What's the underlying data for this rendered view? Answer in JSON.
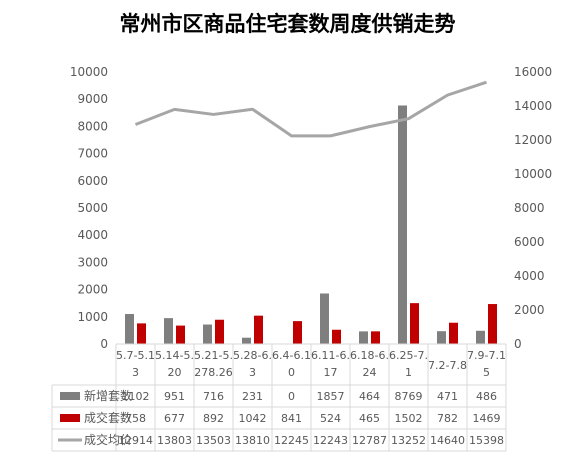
{
  "chart_data": {
    "type": "bar",
    "title": "常州市区商品住宅套数周度供销走势",
    "categories": [
      [
        "5.7-5.1",
        "3"
      ],
      [
        "5.14-5.",
        "20"
      ],
      [
        "5.21-5.",
        "278.26"
      ],
      [
        "5.28-6.",
        "3"
      ],
      [
        "6.4-6.1",
        "0"
      ],
      [
        "6.11-6.",
        "17"
      ],
      [
        "6.18-6.",
        "24"
      ],
      [
        "6.25-7.",
        "1"
      ],
      [
        "7.2-7.8",
        ""
      ],
      [
        "7.9-7.1",
        "5"
      ]
    ],
    "series": [
      {
        "name": "新增套数",
        "axis": "left",
        "kind": "bar",
        "color": "#7f7f7f",
        "values": [
          1102,
          951,
          716,
          231,
          0,
          1857,
          464,
          8769,
          471,
          486
        ]
      },
      {
        "name": "成交套数",
        "axis": "left",
        "kind": "bar",
        "color": "#c00000",
        "values": [
          758,
          677,
          892,
          1042,
          841,
          524,
          465,
          1502,
          782,
          1469
        ]
      },
      {
        "name": "成交均价",
        "axis": "right",
        "kind": "line",
        "color": "#a6a6a6",
        "values": [
          12914,
          13803,
          13503,
          13810,
          12245,
          12243,
          12787,
          13252,
          14640,
          15398
        ]
      }
    ],
    "y_left": {
      "min": 0,
      "max": 10000,
      "step": 1000
    },
    "y_right": {
      "min": 0,
      "max": 16000,
      "step": 2000
    },
    "grid": false,
    "legend": "data-table"
  }
}
